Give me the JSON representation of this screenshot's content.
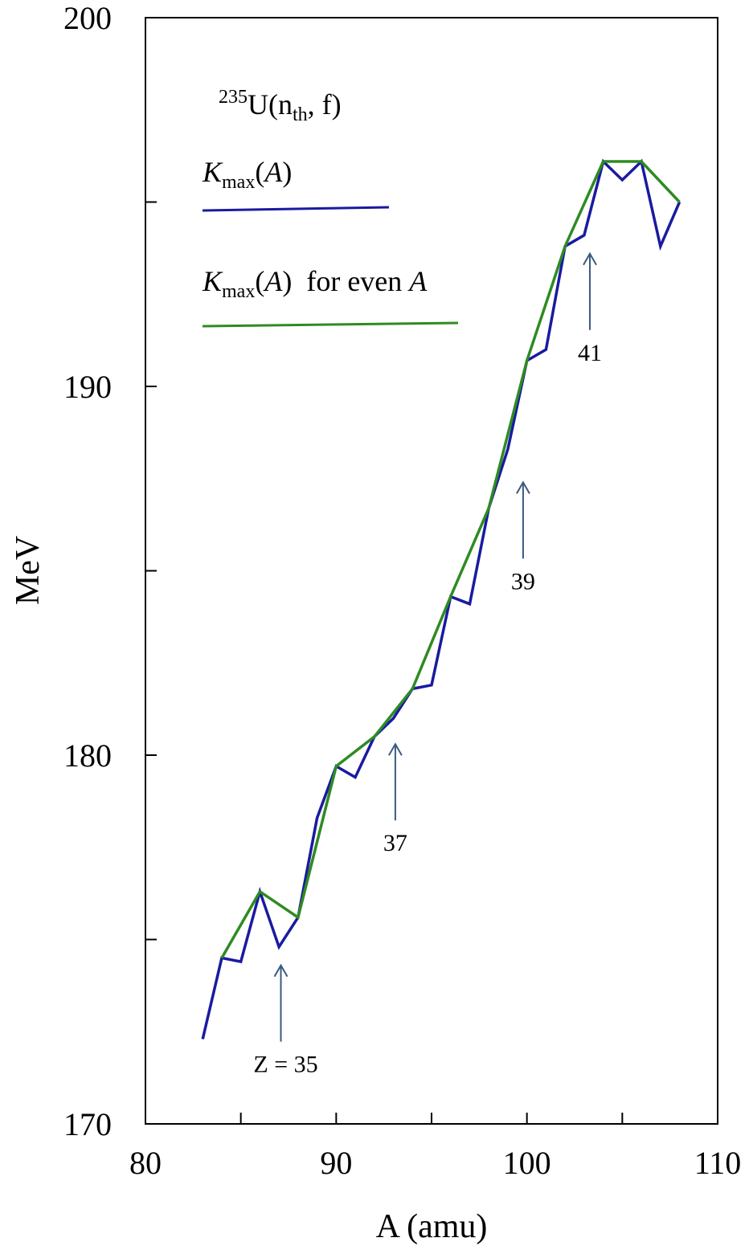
{
  "chart_data": {
    "type": "line",
    "xlabel": "A (amu)",
    "ylabel": "MeV",
    "xlim": [
      80,
      110
    ],
    "ylim": [
      170,
      200
    ],
    "x_ticks": [
      80,
      90,
      100,
      110
    ],
    "y_ticks": [
      170,
      180,
      190,
      200
    ],
    "x_minor_ticks": [
      85,
      95,
      105
    ],
    "y_minor_ticks": [
      175,
      185,
      195
    ],
    "grid": false,
    "legend_position": "top-left",
    "annotation_title": {
      "sup": "235",
      "base": "U(n",
      "sub": "th",
      "rest": ",  f)"
    },
    "series": [
      {
        "name_parts": {
          "k": "K",
          "sub": "max",
          "arg": "(",
          "a": "A",
          "close": ")",
          "suffix": "",
          "suffix_it": ""
        },
        "color": "#1a1aa0",
        "x": [
          83,
          84,
          85,
          86,
          87,
          88,
          89,
          90,
          91,
          92,
          93,
          94,
          95,
          96,
          97,
          98,
          99,
          100,
          101,
          102,
          103,
          104,
          105,
          106,
          107,
          108
        ],
        "y": [
          172.3,
          174.5,
          174.4,
          176.3,
          174.8,
          175.6,
          178.3,
          179.7,
          179.4,
          180.5,
          181.0,
          181.8,
          181.9,
          184.3,
          184.1,
          186.7,
          188.3,
          190.7,
          191.0,
          193.8,
          194.1,
          196.1,
          195.6,
          196.1,
          193.8,
          195.0
        ]
      },
      {
        "name_parts": {
          "k": "K",
          "sub": "max",
          "arg": "(",
          "a": "A",
          "close": ")",
          "suffix": "  for even ",
          "suffix_it": "A"
        },
        "color": "#2e8b22",
        "x": [
          84,
          86,
          88,
          90,
          92,
          94,
          96,
          98,
          100,
          102,
          104,
          106,
          108
        ],
        "y": [
          174.5,
          176.3,
          175.6,
          179.7,
          180.5,
          181.8,
          184.3,
          186.7,
          190.7,
          193.8,
          196.1,
          196.1,
          195.0
        ]
      }
    ],
    "annotations": [
      {
        "label": "Z = 35",
        "x": 87.1,
        "y": 174.3
      },
      {
        "label": "37",
        "x": 93.1,
        "y": 180.3
      },
      {
        "label": "39",
        "x": 99.8,
        "y": 187.4
      },
      {
        "label": "41",
        "x": 103.3,
        "y": 193.6
      }
    ]
  }
}
